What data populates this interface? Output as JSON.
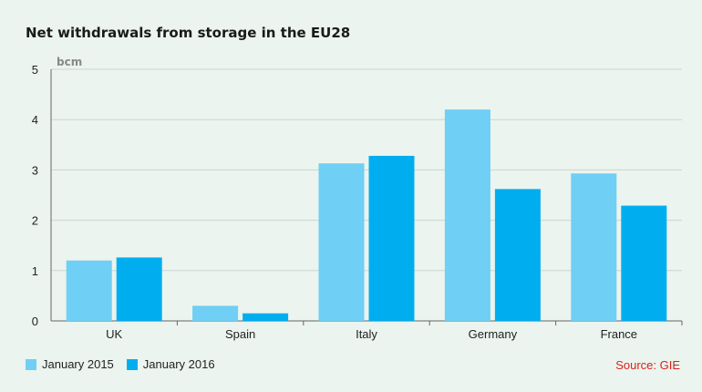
{
  "colors": {
    "series_2015": "#6fcff5",
    "series_2016": "#00aeef",
    "grid": "#c9d6cd",
    "axis": "#666666",
    "source": "#d8231c",
    "background": "#ebf4ee"
  },
  "chart_data": {
    "type": "bar",
    "title": "Net withdrawals from storage in the EU28",
    "ylabel": "bcm",
    "xlabel": "",
    "ylim": [
      0,
      5
    ],
    "yticks": [
      "0",
      "1",
      "2",
      "3",
      "4",
      "5"
    ],
    "categories": [
      "UK",
      "Spain",
      "Italy",
      "Germany",
      "France"
    ],
    "series": [
      {
        "name": "January 2015",
        "values": [
          1.2,
          0.3,
          3.13,
          4.2,
          2.93
        ]
      },
      {
        "name": "January 2016",
        "values": [
          1.26,
          0.15,
          3.28,
          2.62,
          2.29
        ]
      }
    ],
    "grid": true,
    "legend": "bottom-left"
  },
  "source": "Source: GIE"
}
